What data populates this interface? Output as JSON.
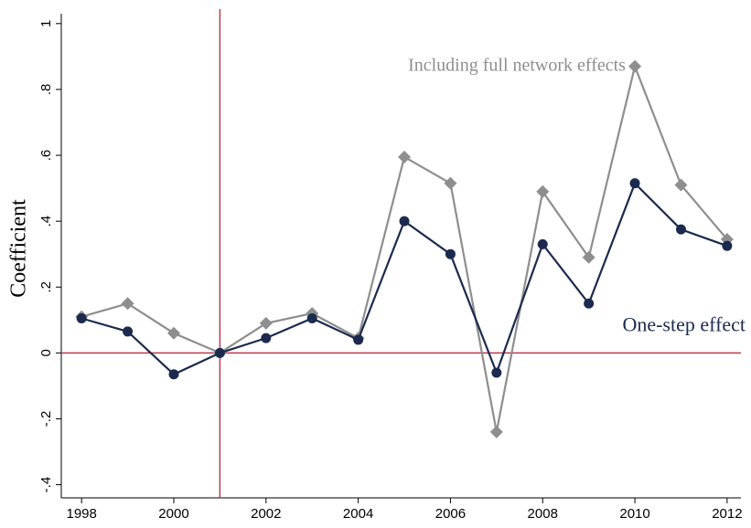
{
  "chart_data": {
    "type": "line",
    "y_label": "Coefficient",
    "x": [
      1998,
      1999,
      2000,
      2001,
      2002,
      2003,
      2004,
      2005,
      2006,
      2007,
      2008,
      2009,
      2010,
      2011,
      2012
    ],
    "series": [
      {
        "name": "Including full network effects",
        "color": "#8e8e8e",
        "marker": "diamond",
        "values": [
          0.11,
          0.15,
          0.06,
          0,
          0.09,
          0.12,
          0.045,
          0.595,
          0.515,
          -0.24,
          0.49,
          0.29,
          0.87,
          0.51,
          0.345
        ]
      },
      {
        "name": "One-step effect",
        "color": "#1b2a4e",
        "marker": "circle",
        "values": [
          0.105,
          0.065,
          -0.065,
          0,
          0.045,
          0.105,
          0.04,
          0.4,
          0.3,
          -0.06,
          0.33,
          0.15,
          0.515,
          0.375,
          0.325
        ]
      }
    ],
    "xlim": [
      1997.56,
      2012.3
    ],
    "ylim": [
      -0.44,
      1.03
    ],
    "xticks": [
      1998,
      2000,
      2002,
      2004,
      2006,
      2008,
      2010,
      2012
    ],
    "yticks": [
      1,
      {
        "value": 0.8,
        "label": ".8"
      },
      {
        "value": 0.6,
        "label": ".6"
      },
      {
        "value": 0.4,
        "label": ".4"
      },
      {
        "value": 0.2,
        "label": ".2"
      },
      0,
      {
        "value": -0.2,
        "label": "-.2"
      },
      {
        "value": -0.4,
        "label": "-.4"
      }
    ],
    "vlines": [
      2001
    ],
    "hlines": [
      0
    ],
    "ref_color": "#c0394b"
  }
}
